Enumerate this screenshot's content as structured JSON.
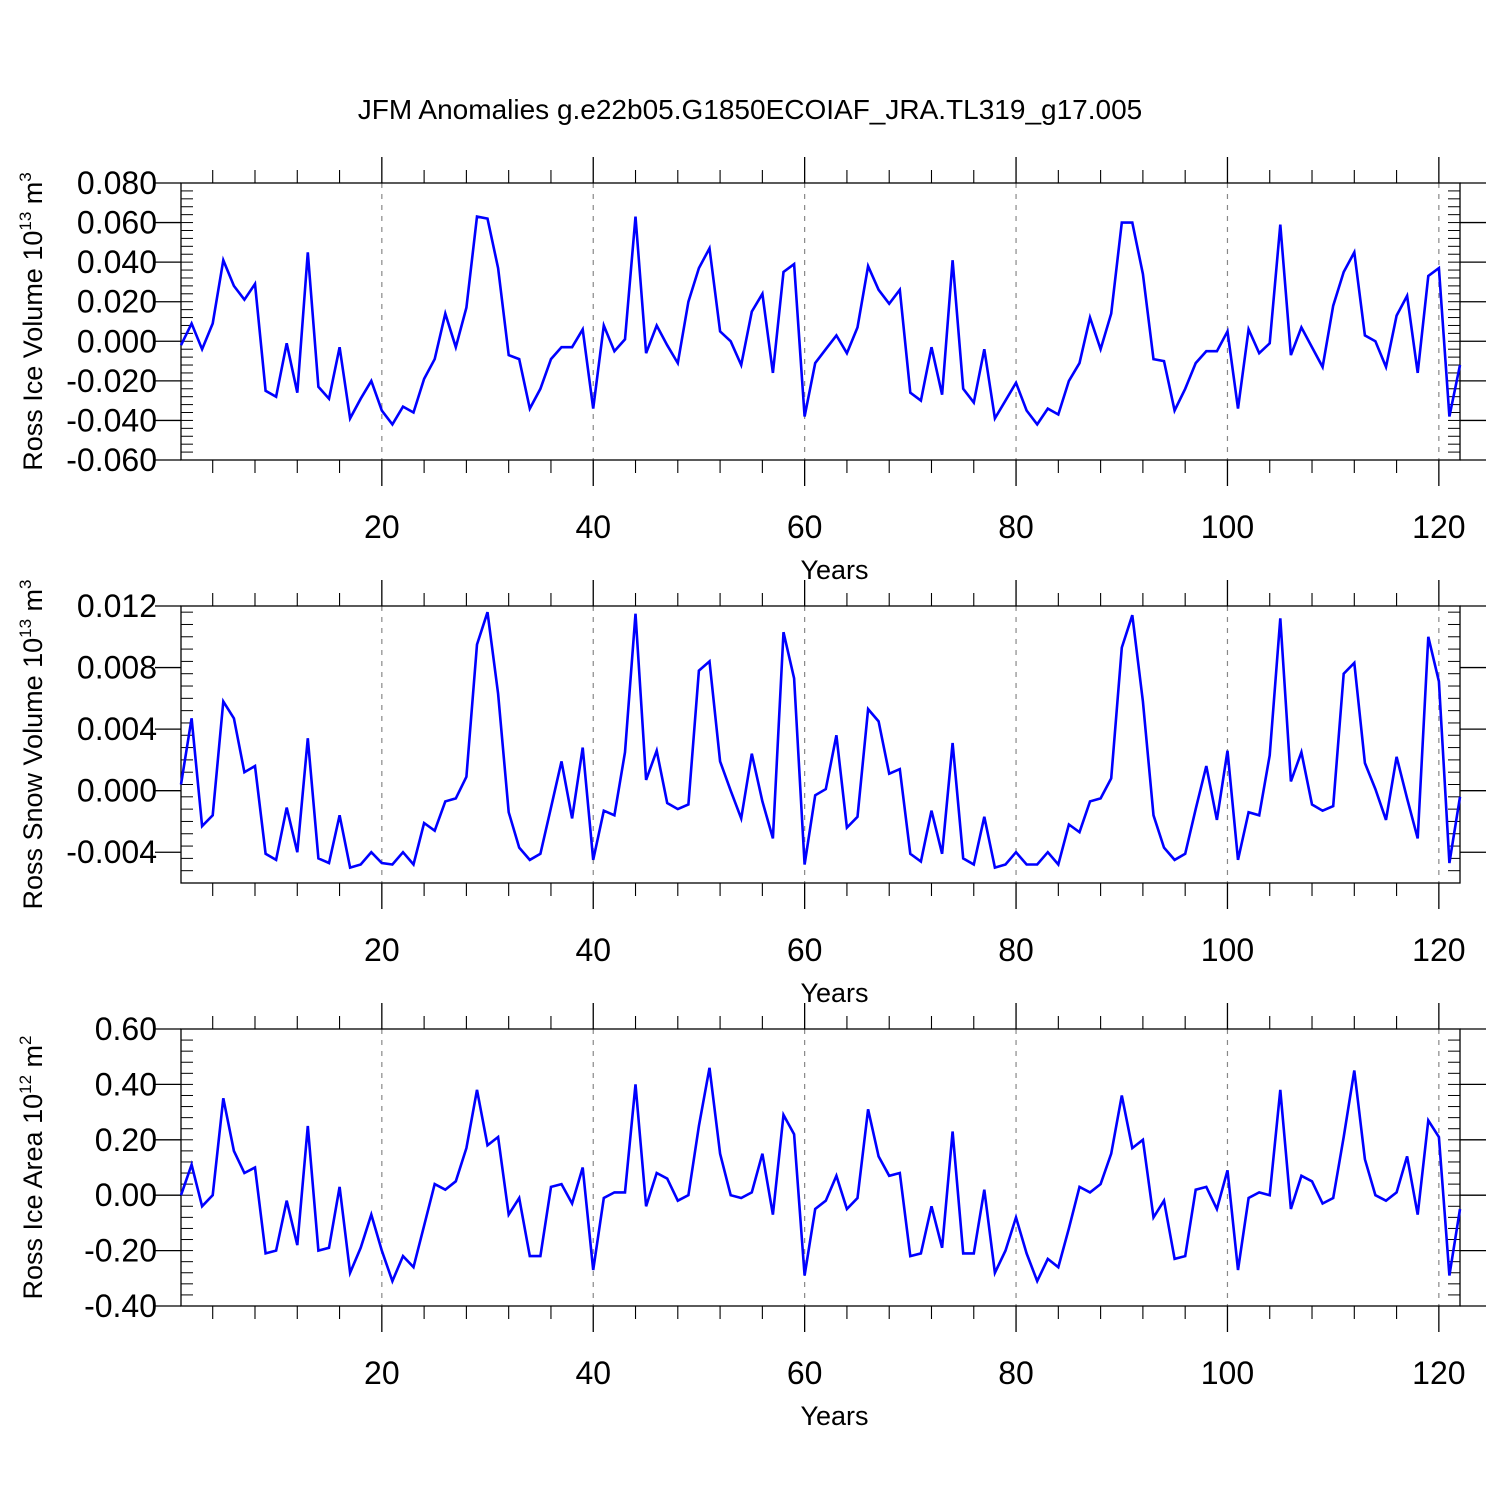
{
  "title": "JFM Anomalies g.e22b05.G1850ECOIAF_JRA.TL319_g17.005",
  "chart_data": [
    {
      "type": "line",
      "ylabel": {
        "text": "Ross Ice Volume 10",
        "sup": "13",
        "unit": " m",
        "unit_sup": "3"
      },
      "xlabel": "Years",
      "xlim": [
        1,
        122
      ],
      "ylim": [
        -0.06,
        0.08
      ],
      "xticks": [
        20,
        40,
        60,
        80,
        100,
        120
      ],
      "xtick_labels": [
        "20",
        "40",
        "60",
        "80",
        "100",
        "120"
      ],
      "yticks": [
        -0.06,
        -0.04,
        -0.02,
        0.0,
        0.02,
        0.04,
        0.06,
        0.08
      ],
      "ytick_labels": [
        "-0.060",
        "-0.040",
        "-0.020",
        "0.000",
        "0.020",
        "0.040",
        "0.060",
        "0.080"
      ],
      "grid": "dashed vertical at x ticks",
      "series": [
        {
          "color": "#0000ff",
          "x": [
            1,
            2,
            3,
            4,
            5,
            6,
            7,
            8,
            9,
            10,
            11,
            12,
            13,
            14,
            15,
            16,
            17,
            18,
            19,
            20,
            21,
            22,
            23,
            24,
            25,
            26,
            27,
            28,
            29,
            30,
            31,
            32,
            33,
            34,
            35,
            36,
            37,
            38,
            39,
            40,
            41,
            42,
            43,
            44,
            45,
            46,
            47,
            48,
            49,
            50,
            51,
            52,
            53,
            54,
            55,
            56,
            57,
            58,
            59,
            60,
            61,
            62,
            63,
            64,
            65,
            66,
            67,
            68,
            69,
            70,
            71,
            72,
            73,
            74,
            75,
            76,
            77,
            78,
            79,
            80,
            81,
            82,
            83,
            84,
            85,
            86,
            87,
            88,
            89,
            90,
            91,
            92,
            93,
            94,
            95,
            96,
            97,
            98,
            99,
            100,
            101,
            102,
            103,
            104,
            105,
            106,
            107,
            108,
            109,
            110,
            111,
            112,
            113,
            114,
            115,
            116,
            117,
            118,
            119,
            120,
            121,
            122
          ],
          "values": [
            -0.002,
            0.009,
            -0.004,
            0.009,
            0.041,
            0.028,
            0.021,
            0.029,
            -0.025,
            -0.028,
            -0.001,
            -0.026,
            0.045,
            -0.023,
            -0.029,
            -0.003,
            -0.039,
            -0.029,
            -0.02,
            -0.035,
            -0.042,
            -0.033,
            -0.036,
            -0.019,
            -0.009,
            0.014,
            -0.003,
            0.017,
            0.063,
            0.062,
            0.037,
            -0.007,
            -0.009,
            -0.034,
            -0.024,
            -0.009,
            -0.003,
            -0.003,
            0.006,
            -0.034,
            0.008,
            -0.005,
            0.001,
            0.063,
            -0.006,
            0.008,
            -0.002,
            -0.011,
            0.02,
            0.037,
            0.047,
            0.005,
            0.0,
            -0.012,
            0.015,
            0.024,
            -0.016,
            0.035,
            0.039,
            -0.038,
            -0.011,
            -0.004,
            0.003,
            -0.006,
            0.007,
            0.038,
            0.026,
            0.019,
            0.026,
            -0.026,
            -0.03,
            -0.003,
            -0.027,
            0.041,
            -0.024,
            -0.031,
            -0.004,
            -0.039,
            -0.03,
            -0.021,
            -0.035,
            -0.042,
            -0.034,
            -0.037,
            -0.02,
            -0.011,
            0.012,
            -0.004,
            0.014,
            0.06,
            0.06,
            0.034,
            -0.009,
            -0.01,
            -0.035,
            -0.024,
            -0.011,
            -0.005,
            -0.005,
            0.005,
            -0.034,
            0.006,
            -0.006,
            -0.001,
            0.059,
            -0.007,
            0.007,
            -0.003,
            -0.013,
            0.018,
            0.035,
            0.045,
            0.003,
            0.0,
            -0.013,
            0.013,
            0.023,
            -0.016,
            0.033,
            0.037,
            -0.038,
            -0.012
          ]
        }
      ]
    },
    {
      "type": "line",
      "ylabel": {
        "text": "Ross Snow Volume 10",
        "sup": "13",
        "unit": " m",
        "unit_sup": "3"
      },
      "xlabel": "Years",
      "xlim": [
        1,
        122
      ],
      "ylim": [
        -0.006,
        0.012
      ],
      "xticks": [
        20,
        40,
        60,
        80,
        100,
        120
      ],
      "xtick_labels": [
        "20",
        "40",
        "60",
        "80",
        "100",
        "120"
      ],
      "yticks": [
        -0.004,
        0.0,
        0.004,
        0.008,
        0.012
      ],
      "ytick_labels": [
        "-0.004",
        "0.000",
        "0.004",
        "0.008",
        "0.012"
      ],
      "grid": "dashed vertical at x ticks",
      "series": [
        {
          "color": "#0000ff",
          "x": [
            1,
            2,
            3,
            4,
            5,
            6,
            7,
            8,
            9,
            10,
            11,
            12,
            13,
            14,
            15,
            16,
            17,
            18,
            19,
            20,
            21,
            22,
            23,
            24,
            25,
            26,
            27,
            28,
            29,
            30,
            31,
            32,
            33,
            34,
            35,
            36,
            37,
            38,
            39,
            40,
            41,
            42,
            43,
            44,
            45,
            46,
            47,
            48,
            49,
            50,
            51,
            52,
            53,
            54,
            55,
            56,
            57,
            58,
            59,
            60,
            61,
            62,
            63,
            64,
            65,
            66,
            67,
            68,
            69,
            70,
            71,
            72,
            73,
            74,
            75,
            76,
            77,
            78,
            79,
            80,
            81,
            82,
            83,
            84,
            85,
            86,
            87,
            88,
            89,
            90,
            91,
            92,
            93,
            94,
            95,
            96,
            97,
            98,
            99,
            100,
            101,
            102,
            103,
            104,
            105,
            106,
            107,
            108,
            109,
            110,
            111,
            112,
            113,
            114,
            115,
            116,
            117,
            118,
            119,
            120,
            121,
            122
          ],
          "values": [
            0.0004,
            0.0047,
            -0.0023,
            -0.0016,
            0.0058,
            0.0047,
            0.0012,
            0.0016,
            -0.0041,
            -0.0045,
            -0.0011,
            -0.004,
            0.0034,
            -0.0044,
            -0.0047,
            -0.0016,
            -0.005,
            -0.0048,
            -0.004,
            -0.0047,
            -0.0048,
            -0.004,
            -0.0048,
            -0.0021,
            -0.0026,
            -0.0007,
            -0.0005,
            0.0009,
            0.0095,
            0.0116,
            0.0063,
            -0.0014,
            -0.0037,
            -0.0045,
            -0.0041,
            -0.0011,
            0.0019,
            -0.0018,
            0.0028,
            -0.0045,
            -0.0013,
            -0.0016,
            0.0025,
            0.0115,
            0.0007,
            0.0026,
            -0.0008,
            -0.0012,
            -0.0009,
            0.0078,
            0.0084,
            0.0019,
            0.0,
            -0.0018,
            0.0024,
            -0.0007,
            -0.0031,
            0.0103,
            0.0073,
            -0.0048,
            -0.0003,
            0.0001,
            0.0036,
            -0.0024,
            -0.0017,
            0.0053,
            0.0045,
            0.0011,
            0.0014,
            -0.0041,
            -0.0046,
            -0.0013,
            -0.0041,
            0.0031,
            -0.0044,
            -0.0048,
            -0.0017,
            -0.005,
            -0.0048,
            -0.004,
            -0.0048,
            -0.0048,
            -0.004,
            -0.0048,
            -0.0022,
            -0.0027,
            -0.0007,
            -0.0005,
            0.0008,
            0.0093,
            0.0114,
            0.0058,
            -0.0016,
            -0.0037,
            -0.0045,
            -0.0041,
            -0.0012,
            0.0016,
            -0.0019,
            0.0026,
            -0.0045,
            -0.0014,
            -0.0016,
            0.0023,
            0.0112,
            0.0006,
            0.0025,
            -0.0009,
            -0.0013,
            -0.001,
            0.0076,
            0.0083,
            0.0018,
            0.0001,
            -0.0019,
            0.0022,
            -0.0005,
            -0.0031,
            0.01,
            0.0071,
            -0.0047,
            -0.0004
          ]
        }
      ]
    },
    {
      "type": "line",
      "ylabel": {
        "text": "Ross Ice Area 10",
        "sup": "12",
        "unit": " m",
        "unit_sup": "2"
      },
      "xlabel": "Years",
      "xlim": [
        1,
        122
      ],
      "ylim": [
        -0.4,
        0.6
      ],
      "xticks": [
        20,
        40,
        60,
        80,
        100,
        120
      ],
      "xtick_labels": [
        "20",
        "40",
        "60",
        "80",
        "100",
        "120"
      ],
      "yticks": [
        -0.4,
        -0.2,
        0.0,
        0.2,
        0.4,
        0.6
      ],
      "ytick_labels": [
        "-0.40",
        "-0.20",
        "0.00",
        "0.20",
        "0.40",
        "0.60"
      ],
      "grid": "dashed vertical at x ticks",
      "series": [
        {
          "color": "#0000ff",
          "x": [
            1,
            2,
            3,
            4,
            5,
            6,
            7,
            8,
            9,
            10,
            11,
            12,
            13,
            14,
            15,
            16,
            17,
            18,
            19,
            20,
            21,
            22,
            23,
            24,
            25,
            26,
            27,
            28,
            29,
            30,
            31,
            32,
            33,
            34,
            35,
            36,
            37,
            38,
            39,
            40,
            41,
            42,
            43,
            44,
            45,
            46,
            47,
            48,
            49,
            50,
            51,
            52,
            53,
            54,
            55,
            56,
            57,
            58,
            59,
            60,
            61,
            62,
            63,
            64,
            65,
            66,
            67,
            68,
            69,
            70,
            71,
            72,
            73,
            74,
            75,
            76,
            77,
            78,
            79,
            80,
            81,
            82,
            83,
            84,
            85,
            86,
            87,
            88,
            89,
            90,
            91,
            92,
            93,
            94,
            95,
            96,
            97,
            98,
            99,
            100,
            101,
            102,
            103,
            104,
            105,
            106,
            107,
            108,
            109,
            110,
            111,
            112,
            113,
            114,
            115,
            116,
            117,
            118,
            119,
            120,
            121,
            122
          ],
          "values": [
            0.0,
            0.11,
            -0.04,
            0.0,
            0.35,
            0.16,
            0.08,
            0.1,
            -0.21,
            -0.2,
            -0.02,
            -0.18,
            0.25,
            -0.2,
            -0.19,
            0.03,
            -0.28,
            -0.19,
            -0.07,
            -0.2,
            -0.31,
            -0.22,
            -0.26,
            -0.11,
            0.04,
            0.02,
            0.05,
            0.17,
            0.38,
            0.18,
            0.21,
            -0.07,
            -0.01,
            -0.22,
            -0.22,
            0.03,
            0.04,
            -0.03,
            0.1,
            -0.27,
            -0.01,
            0.01,
            0.01,
            0.4,
            -0.04,
            0.08,
            0.06,
            -0.02,
            0.0,
            0.25,
            0.46,
            0.15,
            0.0,
            -0.01,
            0.01,
            0.15,
            -0.07,
            0.29,
            0.22,
            -0.29,
            -0.05,
            -0.02,
            0.07,
            -0.05,
            -0.01,
            0.31,
            0.14,
            0.07,
            0.08,
            -0.22,
            -0.21,
            -0.04,
            -0.19,
            0.23,
            -0.21,
            -0.21,
            0.02,
            -0.28,
            -0.2,
            -0.08,
            -0.21,
            -0.31,
            -0.23,
            -0.26,
            -0.12,
            0.03,
            0.01,
            0.04,
            0.15,
            0.36,
            0.17,
            0.2,
            -0.08,
            -0.02,
            -0.23,
            -0.22,
            0.02,
            0.03,
            -0.05,
            0.09,
            -0.27,
            -0.01,
            0.01,
            0.0,
            0.38,
            -0.05,
            0.07,
            0.05,
            -0.03,
            -0.01,
            0.21,
            0.45,
            0.13,
            0.0,
            -0.02,
            0.01,
            0.14,
            -0.07,
            0.27,
            0.21,
            -0.29,
            -0.05
          ]
        }
      ]
    }
  ]
}
